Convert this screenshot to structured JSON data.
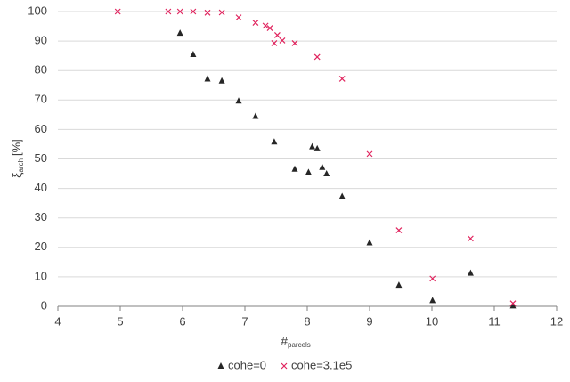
{
  "chart_data": {
    "type": "scatter",
    "xlabel": {
      "symbol": "#",
      "subscript": "parcels"
    },
    "ylabel": {
      "symbol": "ξ",
      "subscript": "arch",
      "unit": "[%]"
    },
    "xlim": [
      4,
      12
    ],
    "xticks": [
      4,
      5,
      6,
      7,
      8,
      9,
      10,
      11,
      12
    ],
    "ylim": [
      0,
      100
    ],
    "yticks": [
      0,
      10,
      20,
      30,
      40,
      50,
      60,
      70,
      80,
      90,
      100
    ],
    "grid": true,
    "legend": "bottom",
    "series": [
      {
        "name": "cohe=0",
        "color": "#262626",
        "marker": "triangle",
        "x": [
          5.96,
          6.17,
          6.4,
          6.63,
          6.9,
          7.17,
          7.47,
          7.8,
          8.02,
          8.08,
          8.16,
          8.24,
          8.31,
          8.56,
          9,
          9.47,
          10.01,
          10.62,
          11.3
        ],
        "values": [
          92.7,
          85.5,
          77.2,
          76.5,
          69.7,
          64.5,
          55.8,
          46.6,
          45.5,
          54.2,
          53.5,
          47.2,
          45,
          37.3,
          21.6,
          7.2,
          2,
          11.3,
          0.2
        ]
      },
      {
        "name": "cohe=3.1e5",
        "color": "#e0245e",
        "marker": "x",
        "x": [
          4.96,
          5.77,
          5.96,
          6.17,
          6.4,
          6.63,
          6.9,
          7.17,
          7.33,
          7.4,
          7.47,
          7.52,
          7.6,
          7.8,
          8.16,
          8.56,
          9,
          9.47,
          10.01,
          10.62,
          11.3
        ],
        "values": [
          100,
          100,
          100,
          100,
          99.6,
          99.7,
          98,
          96.2,
          95.2,
          94.4,
          89.3,
          92,
          90.2,
          89.3,
          84.6,
          77.2,
          51.7,
          25.8,
          9.4,
          23,
          1
        ]
      }
    ]
  }
}
